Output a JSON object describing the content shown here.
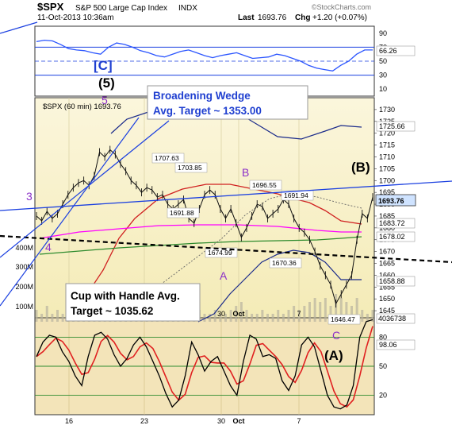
{
  "header": {
    "ticker": "$SPX",
    "name": "S&P 500 Large Cap Index",
    "exchange": "INDX",
    "date": "11-Oct-2013 10:36am",
    "last_label": "Last",
    "last_value": "1693.76",
    "chg_label": "Chg",
    "chg_value": "+1.20 (+0.07%)",
    "watermark": "©StockCharts.com",
    "price_legend": "$SPX (60 min) 1693.76"
  },
  "annotations": {
    "wave_c_bracket": "[C]",
    "wave_5_paren": "(5)",
    "wave_5": "5",
    "wave_3": "3",
    "wave_4": "4",
    "wave_b": "B",
    "wave_a": "A",
    "wave_c": "C",
    "wave_b_paren": "(B)",
    "wave_a_paren": "(A)",
    "broadening_line1": "Broadening Wedge",
    "broadening_line2": "Avg. Target ~ 1353.00",
    "cup_line1": "Cup with Handle Avg.",
    "cup_line2": "Target ~ 1035.62"
  },
  "price_labels": [
    "1707.63",
    "1703.85",
    "1696.55",
    "1691.94",
    "1691.88",
    "1674.99",
    "1670.36",
    "1646.47"
  ],
  "right_tags": {
    "upper": "66.26",
    "ma_upper": "1725.66",
    "price": "1693.76",
    "ma_red": "1683.72",
    "ma_green": "1678.02",
    "ma_lower": "1658.88",
    "volume": "4036738",
    "lower": "98.06"
  },
  "colors": {
    "up_panel_bg": "#ffffff",
    "price_bg": "#f7efc0",
    "price_bg_top": "#fbf5da",
    "stoch_bg": "#f3e4b9",
    "rsi_line": "#2b55ff",
    "wedge_line": "#1a3fe0",
    "annotation_purple": "#8b2fc8",
    "annotation_blue": "#1f3fd0",
    "ma_red": "#d02020",
    "ma_magenta": "#ff00ff",
    "ma_green": "#2e8b2e",
    "bb_navy": "#1a2a8a",
    "stoch_red": "#e02020",
    "stoch_black": "#000000",
    "price_tag_bg": "#cfe3ff"
  },
  "chart_data": [
    {
      "type": "line",
      "panel": "upper-oscillator",
      "y_ticks": [
        90,
        70,
        50,
        30,
        10
      ],
      "reference_lines": [
        70,
        30
      ],
      "ylim": [
        0,
        100
      ],
      "series": [
        {
          "values": [
            78,
            80,
            79,
            74,
            68,
            66,
            65,
            62,
            60,
            70,
            76,
            74,
            70,
            65,
            62,
            58,
            56,
            60,
            64,
            66,
            62,
            58,
            55,
            58,
            60,
            62,
            58,
            54,
            55,
            56,
            60,
            58,
            54,
            50,
            44,
            40,
            38,
            36,
            44,
            50,
            60,
            66,
            66
          ]
        }
      ]
    },
    {
      "type": "line",
      "panel": "price",
      "x_ticks": [
        "16",
        "23",
        "30",
        "Oct",
        "7"
      ],
      "y_ticks": [
        1730,
        1725,
        1720,
        1715,
        1710,
        1705,
        1700,
        1695,
        1690,
        1685,
        1680,
        1675,
        1670,
        1665,
        1660,
        1655,
        1650,
        1645
      ],
      "volume_ticks": [
        "400M",
        "300M",
        "200M",
        "100M"
      ],
      "ylim": [
        1640,
        1735
      ],
      "series": [
        {
          "values": [
            1685,
            1683,
            1687,
            1684,
            1686,
            1690,
            1694,
            1697,
            1699,
            1700,
            1698,
            1702,
            1712,
            1710,
            1713,
            1711,
            1707,
            1704,
            1700,
            1698,
            1695,
            1697,
            1696,
            1693,
            1694,
            1690,
            1688,
            1690,
            1692,
            1684,
            1682,
            1688,
            1694,
            1696,
            1694,
            1688,
            1684,
            1688,
            1682,
            1676,
            1680,
            1685,
            1690,
            1689,
            1684,
            1686,
            1688,
            1692,
            1690,
            1684,
            1680,
            1678,
            1675,
            1670,
            1664,
            1660,
            1656,
            1648,
            1652,
            1656,
            1660,
            1675,
            1686,
            1684,
            1693
          ]
        }
      ]
    },
    {
      "type": "line",
      "panel": "lower-stochastic",
      "y_ticks": [
        80,
        50,
        20
      ],
      "reference_lines": [
        80,
        50,
        20
      ],
      "ylim": [
        0,
        100
      ],
      "series": [
        {
          "values": [
            60,
            75,
            82,
            80,
            65,
            55,
            40,
            30,
            60,
            82,
            85,
            78,
            62,
            50,
            58,
            72,
            80,
            70,
            55,
            40,
            22,
            8,
            15,
            40,
            75,
            62,
            45,
            55,
            60,
            45,
            30,
            20,
            55,
            82,
            78,
            60,
            62,
            58,
            35,
            25,
            40,
            72,
            80,
            70,
            45,
            20,
            8,
            6,
            10,
            30,
            80,
            96,
            98
          ]
        }
      ]
    }
  ]
}
